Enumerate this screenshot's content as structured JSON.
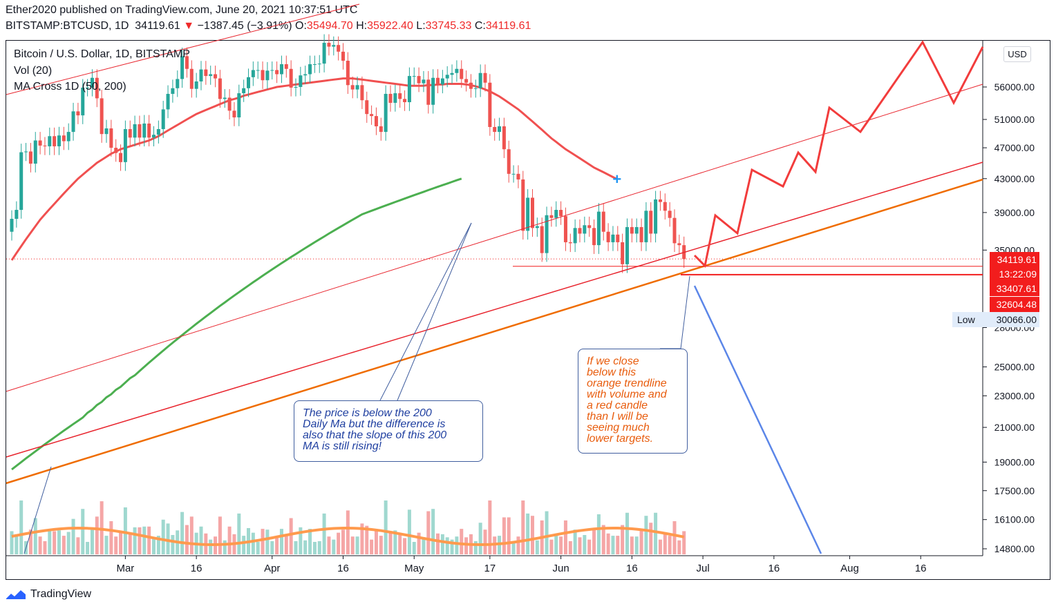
{
  "header": {
    "publisher": "Ether2020 published on TradingView.com, June 20, 2021 10:37:51 UTC",
    "symbol": "BITSTAMP:BTCUSD, 1D",
    "last": "34119.61",
    "change": "−1387.45 (−3.91%)",
    "open_label": "O:",
    "open": "35494.70",
    "high_label": "H:",
    "high": "35922.40",
    "low_label": "L:",
    "low": "33745.33",
    "close_label": "C:",
    "close": "34119.61"
  },
  "legend": {
    "title": "Bitcoin / U.S. Dollar, 1D, BITSTAMP",
    "volume": "Vol (20)",
    "ma": "MA Cross 1D (50, 200)"
  },
  "currency_button": "USD",
  "price_tags": {
    "last_price": "34119.61",
    "countdown": "13:22:09",
    "line1": "33407.61",
    "line2": "32604.48",
    "low_label": "Low",
    "low_value": "30066.00"
  },
  "annotations": {
    "blue_note": "The price is below the 200\nDaily Ma but the difference is\nalso that the slope of this 200\nMA is still rising!",
    "orange_note": "If we close\nbelow this\norange trendline\nwith volume and\na red candle\nthan I will be\nseeing much\nlower targets."
  },
  "footer": {
    "brand": "TradingView"
  },
  "colors": {
    "up": "#26a69a",
    "down": "#ef5350",
    "ma50": "#f05050",
    "ma200": "#4caf50",
    "trend_red": "#e8252e",
    "trend_orange": "#ef6c00",
    "projection_red": "#f23c3c",
    "projection_blue": "#5b86e8",
    "vol_ma": "#ff9a4d",
    "price_tag": "#f21d1d",
    "note_blue": "#1f3fa0",
    "note_orange": "#e85c0d"
  },
  "chart_data": {
    "type": "candlestick",
    "symbol": "BTCUSD",
    "interval": "1D",
    "log_scale": true,
    "ylim": [
      14200,
      66000
    ],
    "y_ticks": [
      "56000.00",
      "51000.00",
      "47000.00",
      "43000.00",
      "39000.00",
      "35000.00",
      "28000.00",
      "25000.00",
      "23000.00",
      "21000.00",
      "19000.00",
      "17500.00",
      "16100.00",
      "14800.00"
    ],
    "x_tick_labels": [
      "Mar",
      "16",
      "Apr",
      "16",
      "May",
      "17",
      "Jun",
      "16",
      "Jul",
      "16",
      "Aug",
      "16"
    ],
    "x_tick_dates": [
      "2021-03-01",
      "2021-03-16",
      "2021-04-01",
      "2021-04-16",
      "2021-05-01",
      "2021-05-17",
      "2021-06-01",
      "2021-06-16",
      "2021-07-01",
      "2021-07-16",
      "2021-08-01",
      "2021-08-16"
    ],
    "date_range": [
      "2021-02-05",
      "2021-08-16"
    ],
    "candles_close": [
      38300,
      39300,
      46400,
      46500,
      44900,
      48000,
      47300,
      47200,
      48600,
      47200,
      48700,
      47900,
      49200,
      52200,
      51600,
      55900,
      55900,
      57500,
      54200,
      48900,
      49700,
      47000,
      46300,
      45100,
      49600,
      48400,
      50300,
      48400,
      50400,
      48400,
      48800,
      49600,
      52500,
      54900,
      55800,
      57300,
      61200,
      59000,
      55700,
      56900,
      58900,
      57800,
      58100,
      57400,
      54100,
      54300,
      52300,
      51300,
      55000,
      55800,
      57600,
      58800,
      58800,
      57100,
      58700,
      58800,
      58100,
      59800,
      59000,
      55900,
      56000,
      57900,
      58100,
      59800,
      59800,
      59900,
      63600,
      62900,
      63200,
      62000,
      60400,
      56300,
      55600,
      56300,
      53900,
      51800,
      51500,
      50000,
      49200,
      54900,
      53500,
      55000,
      54100,
      53600,
      57800,
      57800,
      56600,
      57200,
      53200,
      57500,
      56400,
      57400,
      58000,
      58300,
      59000,
      57300,
      56700,
      55700,
      55800,
      58300,
      56700,
      49900,
      49200,
      50000,
      46800,
      43600,
      43600,
      42900,
      37000,
      40700,
      37300,
      37500,
      34700,
      38700,
      38400,
      39300,
      38600,
      35800,
      35700,
      37300,
      36700,
      37600,
      37300,
      35500,
      39100,
      36900,
      35800,
      36600,
      35800,
      33600,
      37400,
      36700,
      37400,
      35800,
      39200,
      36700,
      40500,
      40200,
      39200,
      38400,
      35700,
      35500,
      34100
    ],
    "candles_open": [
      36900,
      38300,
      39300,
      46400,
      46500,
      44900,
      48000,
      47300,
      47200,
      48600,
      47200,
      48700,
      47900,
      49200,
      52200,
      51600,
      55900,
      55900,
      57500,
      54200,
      48900,
      49700,
      47000,
      46300,
      45100,
      49600,
      48400,
      50300,
      48400,
      50400,
      48400,
      48800,
      49600,
      52500,
      54900,
      55800,
      57300,
      61200,
      59000,
      55700,
      56900,
      58900,
      57800,
      58100,
      57400,
      54100,
      54300,
      52300,
      51300,
      55000,
      55800,
      57600,
      58800,
      58800,
      57100,
      58700,
      58800,
      58100,
      59800,
      59000,
      55900,
      56000,
      57900,
      58100,
      59800,
      59800,
      59900,
      63600,
      62900,
      63200,
      62000,
      60400,
      56300,
      55600,
      56300,
      53900,
      51800,
      51500,
      50000,
      49200,
      54900,
      53500,
      55000,
      54100,
      53600,
      57800,
      57800,
      56600,
      57200,
      53200,
      57500,
      56400,
      57400,
      58000,
      58300,
      59000,
      57300,
      56700,
      55700,
      55800,
      58300,
      56700,
      49900,
      49200,
      50000,
      46800,
      43600,
      43600,
      42900,
      37000,
      40700,
      37300,
      37500,
      34700,
      38700,
      38400,
      39300,
      38600,
      35800,
      35700,
      37300,
      36700,
      37600,
      37300,
      35500,
      39100,
      36900,
      35800,
      36600,
      35800,
      33600,
      37400,
      36700,
      37400,
      35800,
      39200,
      36700,
      40500,
      40200,
      39200,
      38400,
      35700,
      35500
    ],
    "ma50": [
      34000,
      34700,
      35400,
      36100,
      36800,
      37500,
      38200,
      38800,
      39400,
      40000,
      40600,
      41200,
      41800,
      42400,
      43000,
      43500,
      44000,
      44500,
      45000,
      45400,
      45800,
      46200,
      46500,
      46800,
      47000,
      47200,
      47400,
      47600,
      47800,
      48000,
      48300,
      48600,
      49000,
      49400,
      49800,
      50200,
      50600,
      51000,
      51400,
      51800,
      52100,
      52400,
      52700,
      53000,
      53300,
      53600,
      53900,
      54100,
      54300,
      54600,
      54800,
      55000,
      55200,
      55400,
      55600,
      55800,
      56000,
      56100,
      56200,
      56300,
      56400,
      56500,
      56600,
      56700,
      56800,
      56900,
      57000,
      57100,
      57200,
      57300,
      57400,
      57400,
      57400,
      57300,
      57200,
      57100,
      57000,
      56900,
      56800,
      56700,
      56600,
      56500,
      56400,
      56300,
      56200,
      56200,
      56200,
      56200,
      56300,
      56300,
      56400,
      56400,
      56500,
      56500,
      56500,
      56500,
      56400,
      56300,
      56100,
      55900,
      55600,
      55300,
      54900,
      54500,
      54000,
      53500,
      53000,
      52500,
      51900,
      51300,
      50700,
      50100,
      49500,
      48900,
      48300,
      47800,
      47300,
      46800,
      46400,
      46000,
      45600,
      45200,
      44800,
      44400,
      44100,
      43800,
      43500,
      43200,
      42900
    ],
    "ma200": [
      18600,
      18800,
      19000,
      19200,
      19400,
      19600,
      19800,
      20000,
      20200,
      20400,
      20600,
      20800,
      21000,
      21200,
      21400,
      21600,
      21900,
      22100,
      22400,
      22600,
      22900,
      23100,
      23400,
      23600,
      23900,
      24200,
      24400,
      24700,
      25000,
      25300,
      25600,
      25900,
      26200,
      26500,
      26800,
      27100,
      27400,
      27700,
      28000,
      28300,
      28600,
      28900,
      29200,
      29500,
      29800,
      30100,
      30400,
      30700,
      31000,
      31300,
      31600,
      31900,
      32200,
      32500,
      32800,
      33100,
      33400,
      33700,
      34000,
      34300,
      34600,
      34900,
      35200,
      35500,
      35800,
      36100,
      36400,
      36700,
      37000,
      37300,
      37600,
      37900,
      38200,
      38500,
      38800,
      39000,
      39200,
      39400,
      39600,
      39800,
      40000,
      40200,
      40400,
      40600,
      40800,
      41000,
      41200,
      41400,
      41600,
      41800,
      42000,
      42200,
      42400,
      42600,
      42800,
      43000
    ]
  }
}
